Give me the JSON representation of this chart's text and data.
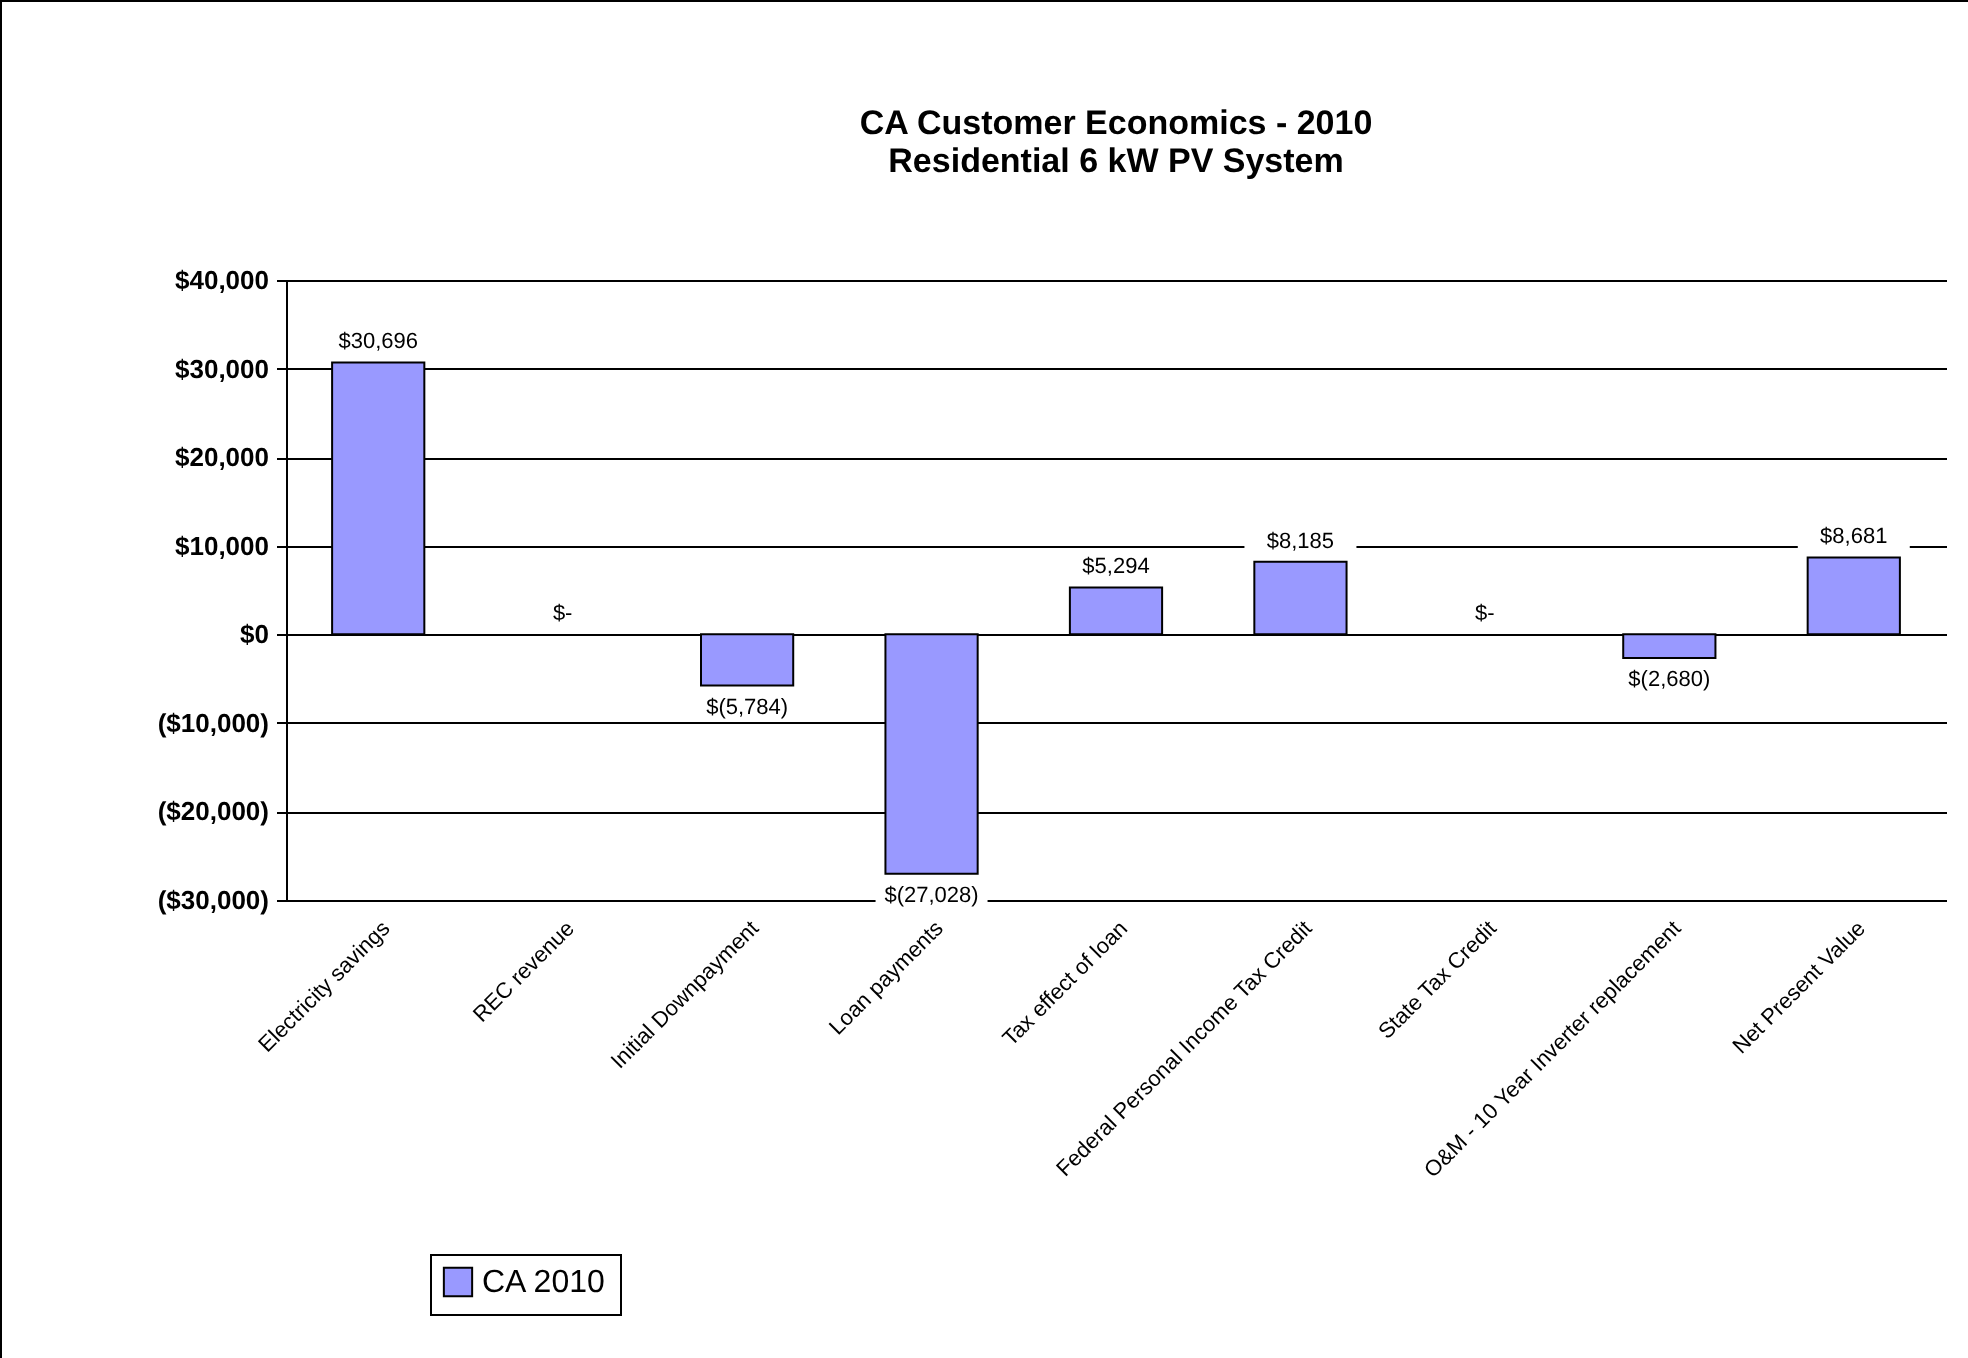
{
  "chart_data": {
    "type": "bar",
    "title": "CA Customer Economics - 2010",
    "subtitle": "Residential 6 kW PV System",
    "categories": [
      "Electricity savings",
      "REC revenue",
      "Initial Downpayment",
      "Loan payments",
      "Tax effect of loan",
      "Federal Personal Income Tax Credit",
      "State Tax Credit",
      "O&M - 10 Year Inverter replacement",
      "Net Present Value"
    ],
    "series": [
      {
        "name": "CA 2010",
        "color": "#9999ff",
        "values": [
          30696,
          0,
          -5784,
          -27028,
          5294,
          8185,
          0,
          -2680,
          8681
        ],
        "value_labels": [
          "$30,696",
          "$-",
          "$(5,784)",
          "$(27,028)",
          "$5,294",
          "$8,185",
          "$-",
          "$(2,680)",
          "$8,681"
        ]
      }
    ],
    "ylim": [
      -30000,
      40000
    ],
    "yticks": [
      {
        "value": -30000,
        "label": "($30,000)"
      },
      {
        "value": -20000,
        "label": "($20,000)"
      },
      {
        "value": -10000,
        "label": "($10,000)"
      },
      {
        "value": 0,
        "label": "$0"
      },
      {
        "value": 10000,
        "label": "$10,000"
      },
      {
        "value": 20000,
        "label": "$20,000"
      },
      {
        "value": 30000,
        "label": "$30,000"
      },
      {
        "value": 40000,
        "label": "$40,000"
      }
    ],
    "grid": "y",
    "legend": "bottom left"
  }
}
